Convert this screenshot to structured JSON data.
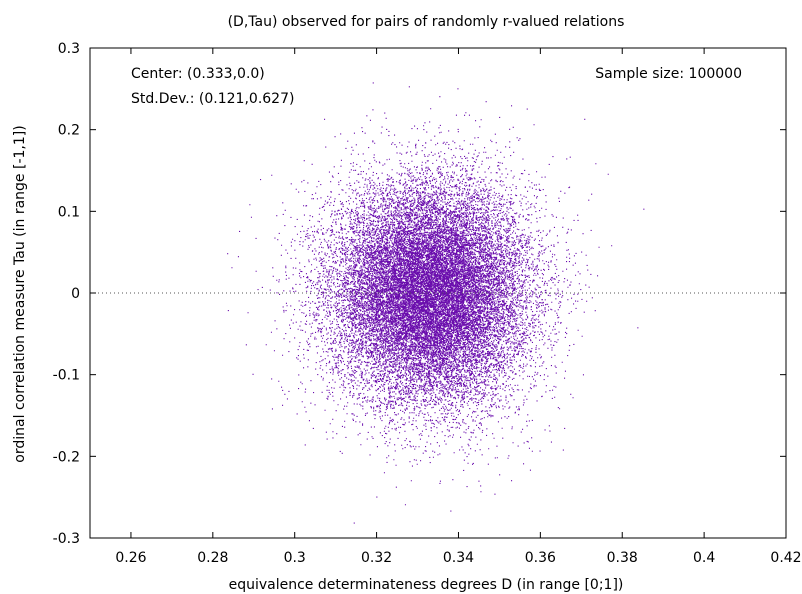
{
  "chart_data": {
    "type": "scatter",
    "title": "(D,Tau) observed for pairs of randomly r-valued relations",
    "xlabel": "equivalence determinateness degrees D (in range [0;1])",
    "ylabel": "ordinal correlation measure Tau (in range [-1,1])",
    "xlim": [
      0.25,
      0.42
    ],
    "ylim": [
      -0.3,
      0.3
    ],
    "x_ticks": [
      "0.26",
      "0.28",
      "0.3",
      "0.32",
      "0.34",
      "0.36",
      "0.38",
      "0.4",
      "0.42"
    ],
    "y_ticks": [
      "0.3",
      "0.2",
      "0.1",
      "0",
      "-0.1",
      "-0.2",
      "-0.3"
    ],
    "x_tick_values": [
      0.26,
      0.28,
      0.3,
      0.32,
      0.34,
      0.36,
      0.38,
      0.4,
      0.42
    ],
    "y_tick_values": [
      0.3,
      0.2,
      0.1,
      0,
      -0.1,
      -0.2,
      -0.3
    ],
    "zero_line": {
      "y": 0,
      "style": "dotted"
    },
    "grid": false,
    "point_color": "#6a0dad",
    "annotations": {
      "center": "Center: (0.333,0.0)",
      "stddev": "Std.Dev.: (0.121,0.627)",
      "sample_size": "Sample size: 100000"
    },
    "series": [
      {
        "distribution": "gaussian",
        "center": [
          0.333,
          0.0
        ],
        "spread_in_axis_units": [
          0.012,
          0.067
        ],
        "n_points": 100000
      }
    ]
  }
}
